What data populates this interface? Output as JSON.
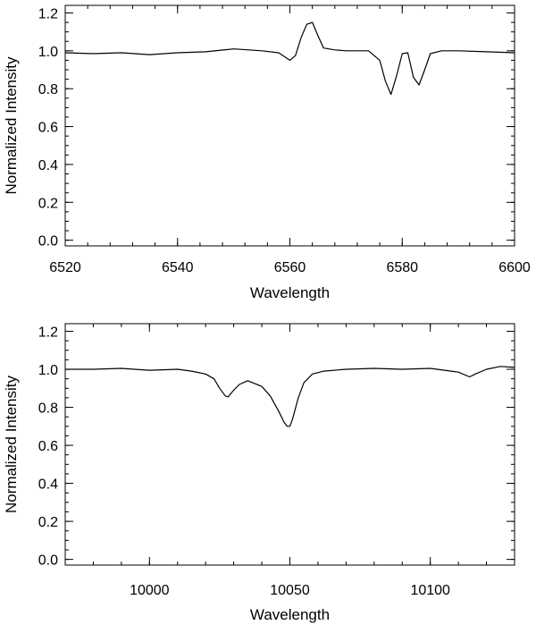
{
  "chart_data": [
    {
      "type": "line",
      "xlabel": "Wavelength",
      "ylabel": "Normalized Intensity",
      "xlim": [
        6520,
        6600
      ],
      "ylim": [
        -0.03,
        1.24
      ],
      "xticks": [
        6520,
        6540,
        6560,
        6580,
        6600
      ],
      "xtick_labels": [
        "6520",
        "6540",
        "6560",
        "6580",
        "6600"
      ],
      "yticks": [
        0.0,
        0.2,
        0.4,
        0.6,
        0.8,
        1.0,
        1.2
      ],
      "ytick_labels": [
        "0.0",
        "0.2",
        "0.4",
        "0.6",
        "0.8",
        "1.0",
        "1.2"
      ],
      "grid": false,
      "series": [
        {
          "x": [
            6520,
            6525,
            6530,
            6535,
            6540,
            6545,
            6550,
            6555,
            6558,
            6560,
            6561,
            6562,
            6563,
            6564,
            6565,
            6566,
            6568,
            6570,
            6574,
            6576,
            6577,
            6578,
            6579,
            6580,
            6581,
            6582,
            6583,
            6584,
            6585,
            6587,
            6590,
            6595,
            6600
          ],
          "y": [
            0.99,
            0.985,
            0.99,
            0.98,
            0.99,
            0.995,
            1.01,
            1.0,
            0.99,
            0.95,
            0.975,
            1.07,
            1.14,
            1.15,
            1.08,
            1.015,
            1.005,
            1.0,
            1.0,
            0.95,
            0.84,
            0.77,
            0.87,
            0.985,
            0.99,
            0.86,
            0.82,
            0.9,
            0.985,
            1.0,
            1.0,
            0.995,
            0.99
          ]
        }
      ]
    },
    {
      "type": "line",
      "xlabel": "Wavelength",
      "ylabel": "Normalized Intensity",
      "xlim": [
        9970,
        10130
      ],
      "ylim": [
        -0.03,
        1.24
      ],
      "xticks": [
        10000,
        10050,
        10100
      ],
      "xtick_labels": [
        "10000",
        "10050",
        "10100"
      ],
      "yticks": [
        0.0,
        0.2,
        0.4,
        0.6,
        0.8,
        1.0,
        1.2
      ],
      "ytick_labels": [
        "0.0",
        "0.2",
        "0.4",
        "0.6",
        "0.8",
        "1.0",
        "1.2"
      ],
      "grid": false,
      "series": [
        {
          "x": [
            9970,
            9980,
            9990,
            10000,
            10010,
            10015,
            10020,
            10023,
            10025,
            10027,
            10028,
            10030,
            10032,
            10035,
            10040,
            10043,
            10046,
            10048,
            10049,
            10050,
            10051,
            10053,
            10055,
            10058,
            10062,
            10070,
            10080,
            10090,
            10100,
            10110,
            10114,
            10116,
            10120,
            10125,
            10130
          ],
          "y": [
            1.0,
            1.0,
            1.005,
            0.995,
            1.0,
            0.99,
            0.975,
            0.95,
            0.9,
            0.86,
            0.855,
            0.89,
            0.92,
            0.94,
            0.91,
            0.86,
            0.78,
            0.72,
            0.7,
            0.7,
            0.74,
            0.85,
            0.93,
            0.975,
            0.99,
            1.0,
            1.005,
            1.0,
            1.005,
            0.985,
            0.96,
            0.975,
            1.0,
            1.015,
            1.01
          ]
        }
      ]
    }
  ]
}
